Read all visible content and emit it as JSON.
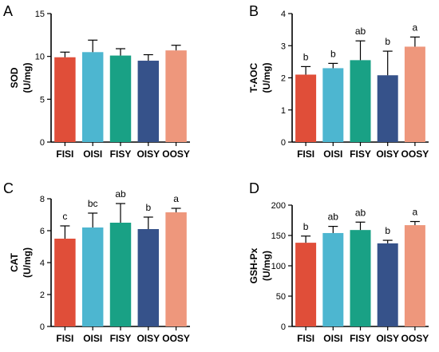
{
  "colors": [
    "#e04e39",
    "#4db6d0",
    "#19a185",
    "#36528a",
    "#ee977c"
  ],
  "chart_data": [
    {
      "panel": "A",
      "type": "bar",
      "ylabel_line1": "SOD",
      "ylabel_line2": "(U/mg)",
      "categories": [
        "FISI",
        "OISI",
        "FISY",
        "OISY",
        "OOSY"
      ],
      "values": [
        9.9,
        10.5,
        10.1,
        9.5,
        10.7
      ],
      "errors": [
        0.6,
        1.4,
        0.8,
        0.7,
        0.6
      ],
      "letters": [
        "",
        "",
        "",
        "",
        ""
      ],
      "ylim": [
        0,
        15
      ],
      "yticks": [
        0,
        5,
        10,
        15
      ]
    },
    {
      "panel": "B",
      "type": "bar",
      "ylabel_line1": "T-AOC",
      "ylabel_line2": "(U/mg)",
      "categories": [
        "FISI",
        "OISI",
        "FISY",
        "OISY",
        "OOSY"
      ],
      "values": [
        2.1,
        2.3,
        2.55,
        2.08,
        2.97
      ],
      "errors": [
        0.25,
        0.15,
        0.6,
        0.75,
        0.3
      ],
      "letters": [
        "b",
        "b",
        "ab",
        "b",
        "a"
      ],
      "ylim": [
        0,
        4
      ],
      "yticks": [
        0,
        1,
        2,
        3,
        4
      ]
    },
    {
      "panel": "C",
      "type": "bar",
      "ylabel_line1": "CAT",
      "ylabel_line2": "(U/mg)",
      "categories": [
        "FISI",
        "OISI",
        "FISY",
        "OISY",
        "OOSY"
      ],
      "values": [
        5.5,
        6.2,
        6.5,
        6.1,
        7.15
      ],
      "errors": [
        0.8,
        0.9,
        1.2,
        0.75,
        0.25
      ],
      "letters": [
        "c",
        "bc",
        "ab",
        "b",
        "a"
      ],
      "ylim": [
        0,
        8
      ],
      "yticks": [
        0,
        2,
        4,
        6,
        8
      ]
    },
    {
      "panel": "D",
      "type": "bar",
      "ylabel_line1": "GSH-Px",
      "ylabel_line2": "(U/mg)",
      "categories": [
        "FISI",
        "OISI",
        "FISY",
        "OISY",
        "OOSY"
      ],
      "values": [
        138,
        154,
        159,
        137,
        167
      ],
      "errors": [
        11,
        11,
        13,
        5,
        6
      ],
      "letters": [
        "b",
        "ab",
        "ab",
        "b",
        "a"
      ],
      "ylim": [
        0,
        200
      ],
      "yticks": [
        0,
        50,
        100,
        150,
        200
      ]
    }
  ]
}
